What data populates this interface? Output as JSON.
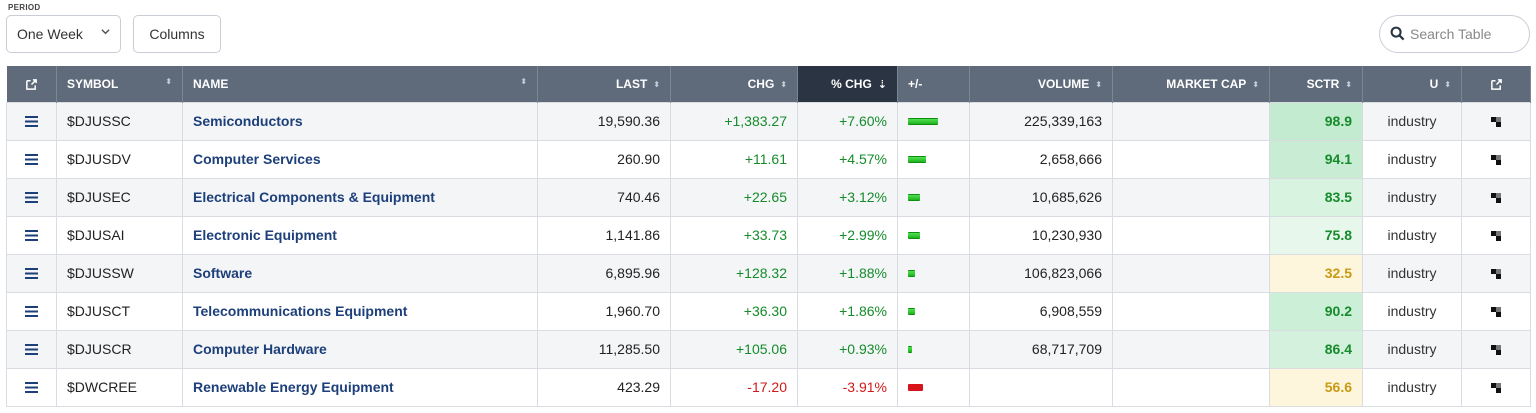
{
  "toolbar": {
    "period_label": "PERIOD",
    "period_value": "One Week",
    "columns_label": "Columns",
    "search_placeholder": "Search Table"
  },
  "table": {
    "headers": {
      "symbol": "SYMBOL",
      "name": "NAME",
      "last": "LAST",
      "chg": "CHG",
      "pct_chg": "% CHG",
      "plus_minus": "+/-",
      "volume": "VOLUME",
      "market_cap": "MARKET CAP",
      "sctr": "SCTR",
      "u": "U"
    },
    "sorted_column": "pct_chg",
    "rows": [
      {
        "symbol": "$DJUSSC",
        "name": "Semiconductors",
        "last": "19,590.36",
        "chg": "+1,383.27",
        "pct": "+7.60%",
        "pct_value": 7.6,
        "volume": "225,339,163",
        "market_cap": "",
        "sctr": "98.9",
        "sctr_bg": "#c2ebd0",
        "sctr_color": "#168b2b",
        "u": "industry"
      },
      {
        "symbol": "$DJUSDV",
        "name": "Computer Services",
        "last": "260.90",
        "chg": "+11.61",
        "pct": "+4.57%",
        "pct_value": 4.57,
        "volume": "2,658,666",
        "market_cap": "",
        "sctr": "94.1",
        "sctr_bg": "#c8edd4",
        "sctr_color": "#168b2b",
        "u": "industry"
      },
      {
        "symbol": "$DJUSEC",
        "name": "Electrical Components & Equipment",
        "last": "740.46",
        "chg": "+22.65",
        "pct": "+3.12%",
        "pct_value": 3.12,
        "volume": "10,685,626",
        "market_cap": "",
        "sctr": "83.5",
        "sctr_bg": "#d8f3e0",
        "sctr_color": "#168b2b",
        "u": "industry"
      },
      {
        "symbol": "$DJUSAI",
        "name": "Electronic Equipment",
        "last": "1,141.86",
        "chg": "+33.73",
        "pct": "+2.99%",
        "pct_value": 2.99,
        "volume": "10,230,930",
        "market_cap": "",
        "sctr": "75.8",
        "sctr_bg": "#e7f7ec",
        "sctr_color": "#168b2b",
        "u": "industry"
      },
      {
        "symbol": "$DJUSSW",
        "name": "Software",
        "last": "6,895.96",
        "chg": "+128.32",
        "pct": "+1.88%",
        "pct_value": 1.88,
        "volume": "106,823,066",
        "market_cap": "",
        "sctr": "32.5",
        "sctr_bg": "#fdf5dc",
        "sctr_color": "#c99a12",
        "u": "industry"
      },
      {
        "symbol": "$DJUSCT",
        "name": "Telecommunications Equipment",
        "last": "1,960.70",
        "chg": "+36.30",
        "pct": "+1.86%",
        "pct_value": 1.86,
        "volume": "6,908,559",
        "market_cap": "",
        "sctr": "90.2",
        "sctr_bg": "#ccefd7",
        "sctr_color": "#168b2b",
        "u": "industry"
      },
      {
        "symbol": "$DJUSCR",
        "name": "Computer Hardware",
        "last": "11,285.50",
        "chg": "+105.06",
        "pct": "+0.93%",
        "pct_value": 0.93,
        "volume": "68,717,709",
        "market_cap": "",
        "sctr": "86.4",
        "sctr_bg": "#d3f1dc",
        "sctr_color": "#168b2b",
        "u": "industry"
      },
      {
        "symbol": "$DWCREE",
        "name": "Renewable Energy Equipment",
        "last": "423.29",
        "chg": "-17.20",
        "pct": "-3.91%",
        "pct_value": -3.91,
        "volume": "",
        "market_cap": "",
        "sctr": "56.6",
        "sctr_bg": "#fdf5dc",
        "sctr_color": "#c99a12",
        "u": "industry"
      }
    ]
  },
  "colors": {
    "header_bg": "#5f6b7a",
    "sorted_header_bg": "#2b3442",
    "positive": "#168b2b",
    "negative": "#d11a1a",
    "link": "#1d3f7a"
  },
  "icons": {
    "header_left": "external-link-icon",
    "header_right": "external-link-icon",
    "row_menu": "hamburger-menu-icon",
    "row_chart": "chart-checker-icon",
    "search": "search-icon",
    "period_dropdown": "chevron-down-icon"
  }
}
